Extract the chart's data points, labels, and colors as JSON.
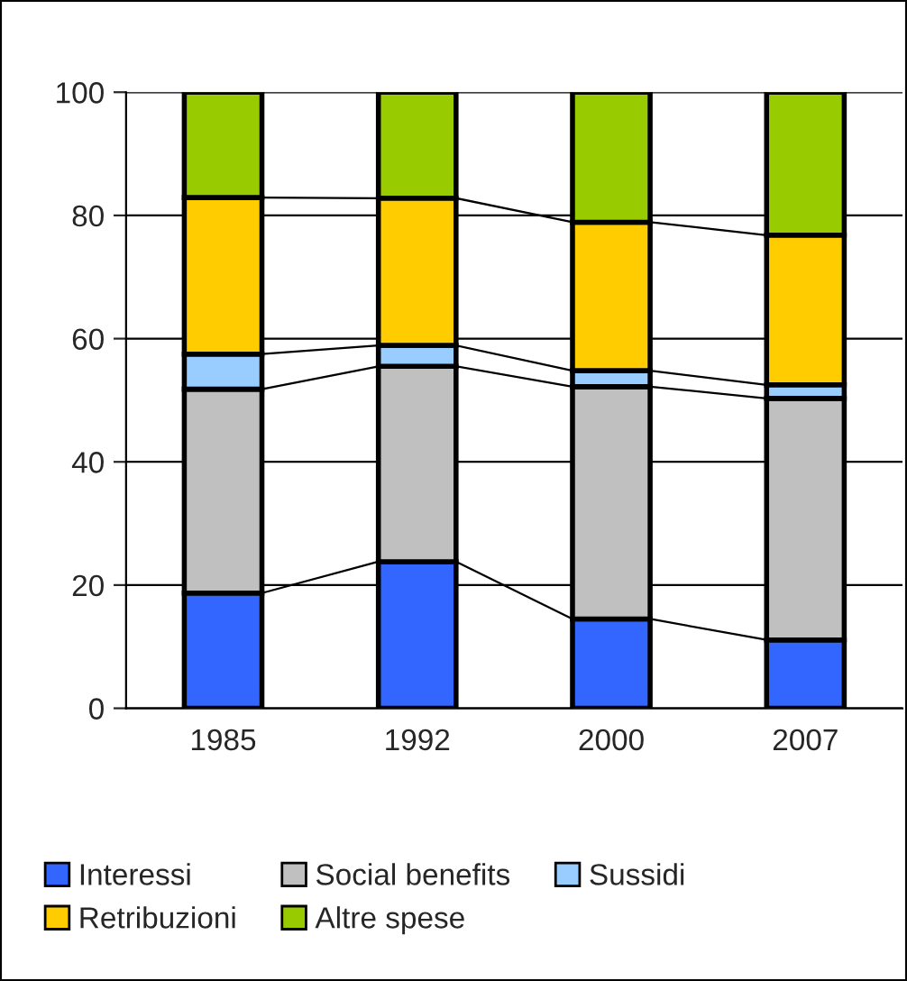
{
  "chart_data": {
    "type": "bar",
    "stacked": true,
    "categories": [
      "1985",
      "1992",
      "2000",
      "2007"
    ],
    "series": [
      {
        "name": "Interessi",
        "color": "#3366ff",
        "values": [
          18.7,
          23.8,
          14.5,
          11.1
        ]
      },
      {
        "name": "Social benefits",
        "color": "#c0c0c0",
        "values": [
          33.1,
          31.7,
          37.7,
          39.2
        ]
      },
      {
        "name": "Sussidi",
        "color": "#99ccff",
        "values": [
          5.7,
          3.4,
          2.6,
          2.2
        ]
      },
      {
        "name": "Retribuzioni",
        "color": "#ffcc00",
        "values": [
          25.4,
          23.9,
          24.1,
          24.3
        ]
      },
      {
        "name": "Altre spese",
        "color": "#99cc00",
        "values": [
          17.1,
          17.2,
          21.1,
          23.2
        ]
      }
    ],
    "ylim": [
      0,
      100
    ],
    "yticks": [
      0,
      20,
      40,
      60,
      80,
      100
    ],
    "grid": "y",
    "legend": "bottom"
  }
}
